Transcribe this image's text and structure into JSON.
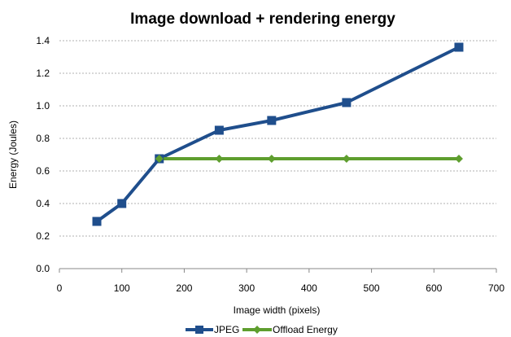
{
  "chart_data": {
    "type": "line",
    "title": "Image download + rendering energy",
    "xlabel": "Image width (pixels)",
    "ylabel": "Energy (Joules)",
    "xlim": [
      0,
      700
    ],
    "ylim": [
      0.0,
      1.4
    ],
    "x_ticks": [
      0,
      100,
      200,
      300,
      400,
      500,
      600,
      700
    ],
    "y_ticks": [
      0.0,
      0.2,
      0.4,
      0.6,
      0.8,
      1.0,
      1.2,
      1.4
    ],
    "x_tick_labels": [
      "0",
      "100",
      "200",
      "300",
      "400",
      "500",
      "600",
      "700"
    ],
    "y_tick_labels": [
      "0.0",
      "0.2",
      "0.4",
      "0.6",
      "0.8",
      "1.0",
      "1.2",
      "1.4"
    ],
    "grid": "horizontal dashed",
    "legend_position": "bottom",
    "series": [
      {
        "name": "JPEG",
        "color": "#1F4E8C",
        "marker": "square",
        "points": [
          {
            "x": 60,
            "y": 0.29
          },
          {
            "x": 100,
            "y": 0.4
          },
          {
            "x": 160,
            "y": 0.675
          },
          {
            "x": 256,
            "y": 0.85
          },
          {
            "x": 340,
            "y": 0.91
          },
          {
            "x": 460,
            "y": 1.02
          },
          {
            "x": 640,
            "y": 1.36
          }
        ]
      },
      {
        "name": "Offload Energy",
        "color": "#5E9E2E",
        "marker": "diamond",
        "points": [
          {
            "x": 160,
            "y": 0.675
          },
          {
            "x": 256,
            "y": 0.675
          },
          {
            "x": 340,
            "y": 0.675
          },
          {
            "x": 460,
            "y": 0.675
          },
          {
            "x": 640,
            "y": 0.675
          }
        ]
      }
    ]
  }
}
